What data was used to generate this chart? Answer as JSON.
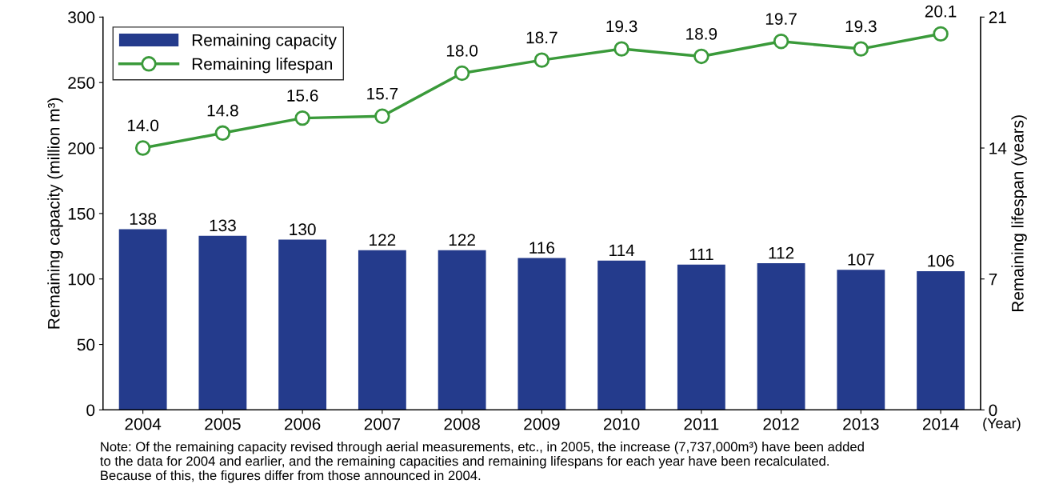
{
  "chart_data": {
    "type": "bar",
    "categories": [
      "2004",
      "2005",
      "2006",
      "2007",
      "2008",
      "2009",
      "2010",
      "2011",
      "2012",
      "2013",
      "2014"
    ],
    "series": [
      {
        "name": "Remaining capacity",
        "color": "#243b8c",
        "values": [
          138,
          133,
          130,
          122,
          122,
          116,
          114,
          111,
          112,
          107,
          106
        ]
      },
      {
        "name": "Remaining lifespan",
        "type": "line",
        "axis": "y2",
        "color": "#3a9a3a",
        "marker": "circle",
        "values": [
          14.0,
          14.8,
          15.6,
          15.7,
          18.0,
          18.7,
          19.3,
          18.9,
          19.7,
          19.3,
          20.1
        ],
        "value_labels": [
          "14.0",
          "14.8",
          "15.6",
          "15.7",
          "18.0",
          "18.7",
          "19.3",
          "18.9",
          "19.7",
          "19.3",
          "20.1"
        ]
      }
    ],
    "xlabel": "(Year)",
    "ylabel": "Remaining capacity (million m³)",
    "y2label": "Remaining lifespan (years)",
    "ylim": [
      0,
      300
    ],
    "yticks": [
      0,
      50,
      100,
      150,
      200,
      250,
      300
    ],
    "y2lim": [
      0,
      21
    ],
    "y2ticks": [
      0,
      7,
      14,
      21
    ],
    "data_labels": true,
    "legend": "top left",
    "grid": false,
    "annotations": [
      "Note: Of the remaining capacity revised through aerial measurements, etc., in 2005, the increase (7,737,000m³) have been added\nto the data for 2004 and earlier, and the remaining capacities and remaining lifespans for each year have been recalculated.\nBecause of this, the figures differ from those announced in 2004."
    ]
  }
}
